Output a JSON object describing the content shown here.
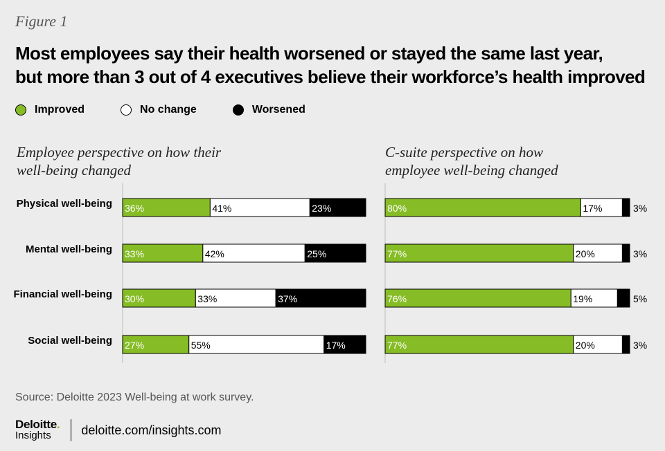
{
  "figure_label": "Figure 1",
  "title_line1": "Most employees say their health worsened or stayed the same last year,",
  "title_line2": "but more than 3 out of 4 executives believe their workforce’s health improved",
  "legend": [
    {
      "label": "Improved",
      "color": "#86bc25"
    },
    {
      "label": "No change",
      "color": "#ffffff"
    },
    {
      "label": "Worsened",
      "color": "#000000"
    }
  ],
  "chart_data": [
    {
      "type": "bar",
      "orientation": "horizontal-stacked-100",
      "title_line1": "Employee perspective on how their",
      "title_line2": "well-being changed",
      "categories": [
        "Physical well-being",
        "Mental well-being",
        "Financial well-being",
        "Social well-being"
      ],
      "series": [
        {
          "name": "Improved",
          "color": "#86bc25",
          "values": [
            36,
            33,
            30,
            27
          ]
        },
        {
          "name": "No change",
          "color": "#ffffff",
          "values": [
            41,
            42,
            33,
            55
          ]
        },
        {
          "name": "Worsened",
          "color": "#000000",
          "values": [
            23,
            25,
            37,
            17
          ]
        }
      ],
      "value_suffix": "%"
    },
    {
      "type": "bar",
      "orientation": "horizontal-stacked-100",
      "title_line1": "C-suite perspective on how",
      "title_line2": "employee well-being changed",
      "categories": [
        "Physical well-being",
        "Mental well-being",
        "Financial well-being",
        "Social well-being"
      ],
      "series": [
        {
          "name": "Improved",
          "color": "#86bc25",
          "values": [
            80,
            77,
            76,
            77
          ]
        },
        {
          "name": "No change",
          "color": "#ffffff",
          "values": [
            17,
            20,
            19,
            20
          ]
        },
        {
          "name": "Worsened",
          "color": "#000000",
          "values": [
            3,
            3,
            5,
            3
          ]
        }
      ],
      "value_suffix": "%"
    }
  ],
  "source": "Source: Deloitte 2023 Well-being at work survey.",
  "brand": {
    "name": "Deloitte",
    "dot": ".",
    "sub": "Insights",
    "url": "deloitte.com/insights.com"
  }
}
